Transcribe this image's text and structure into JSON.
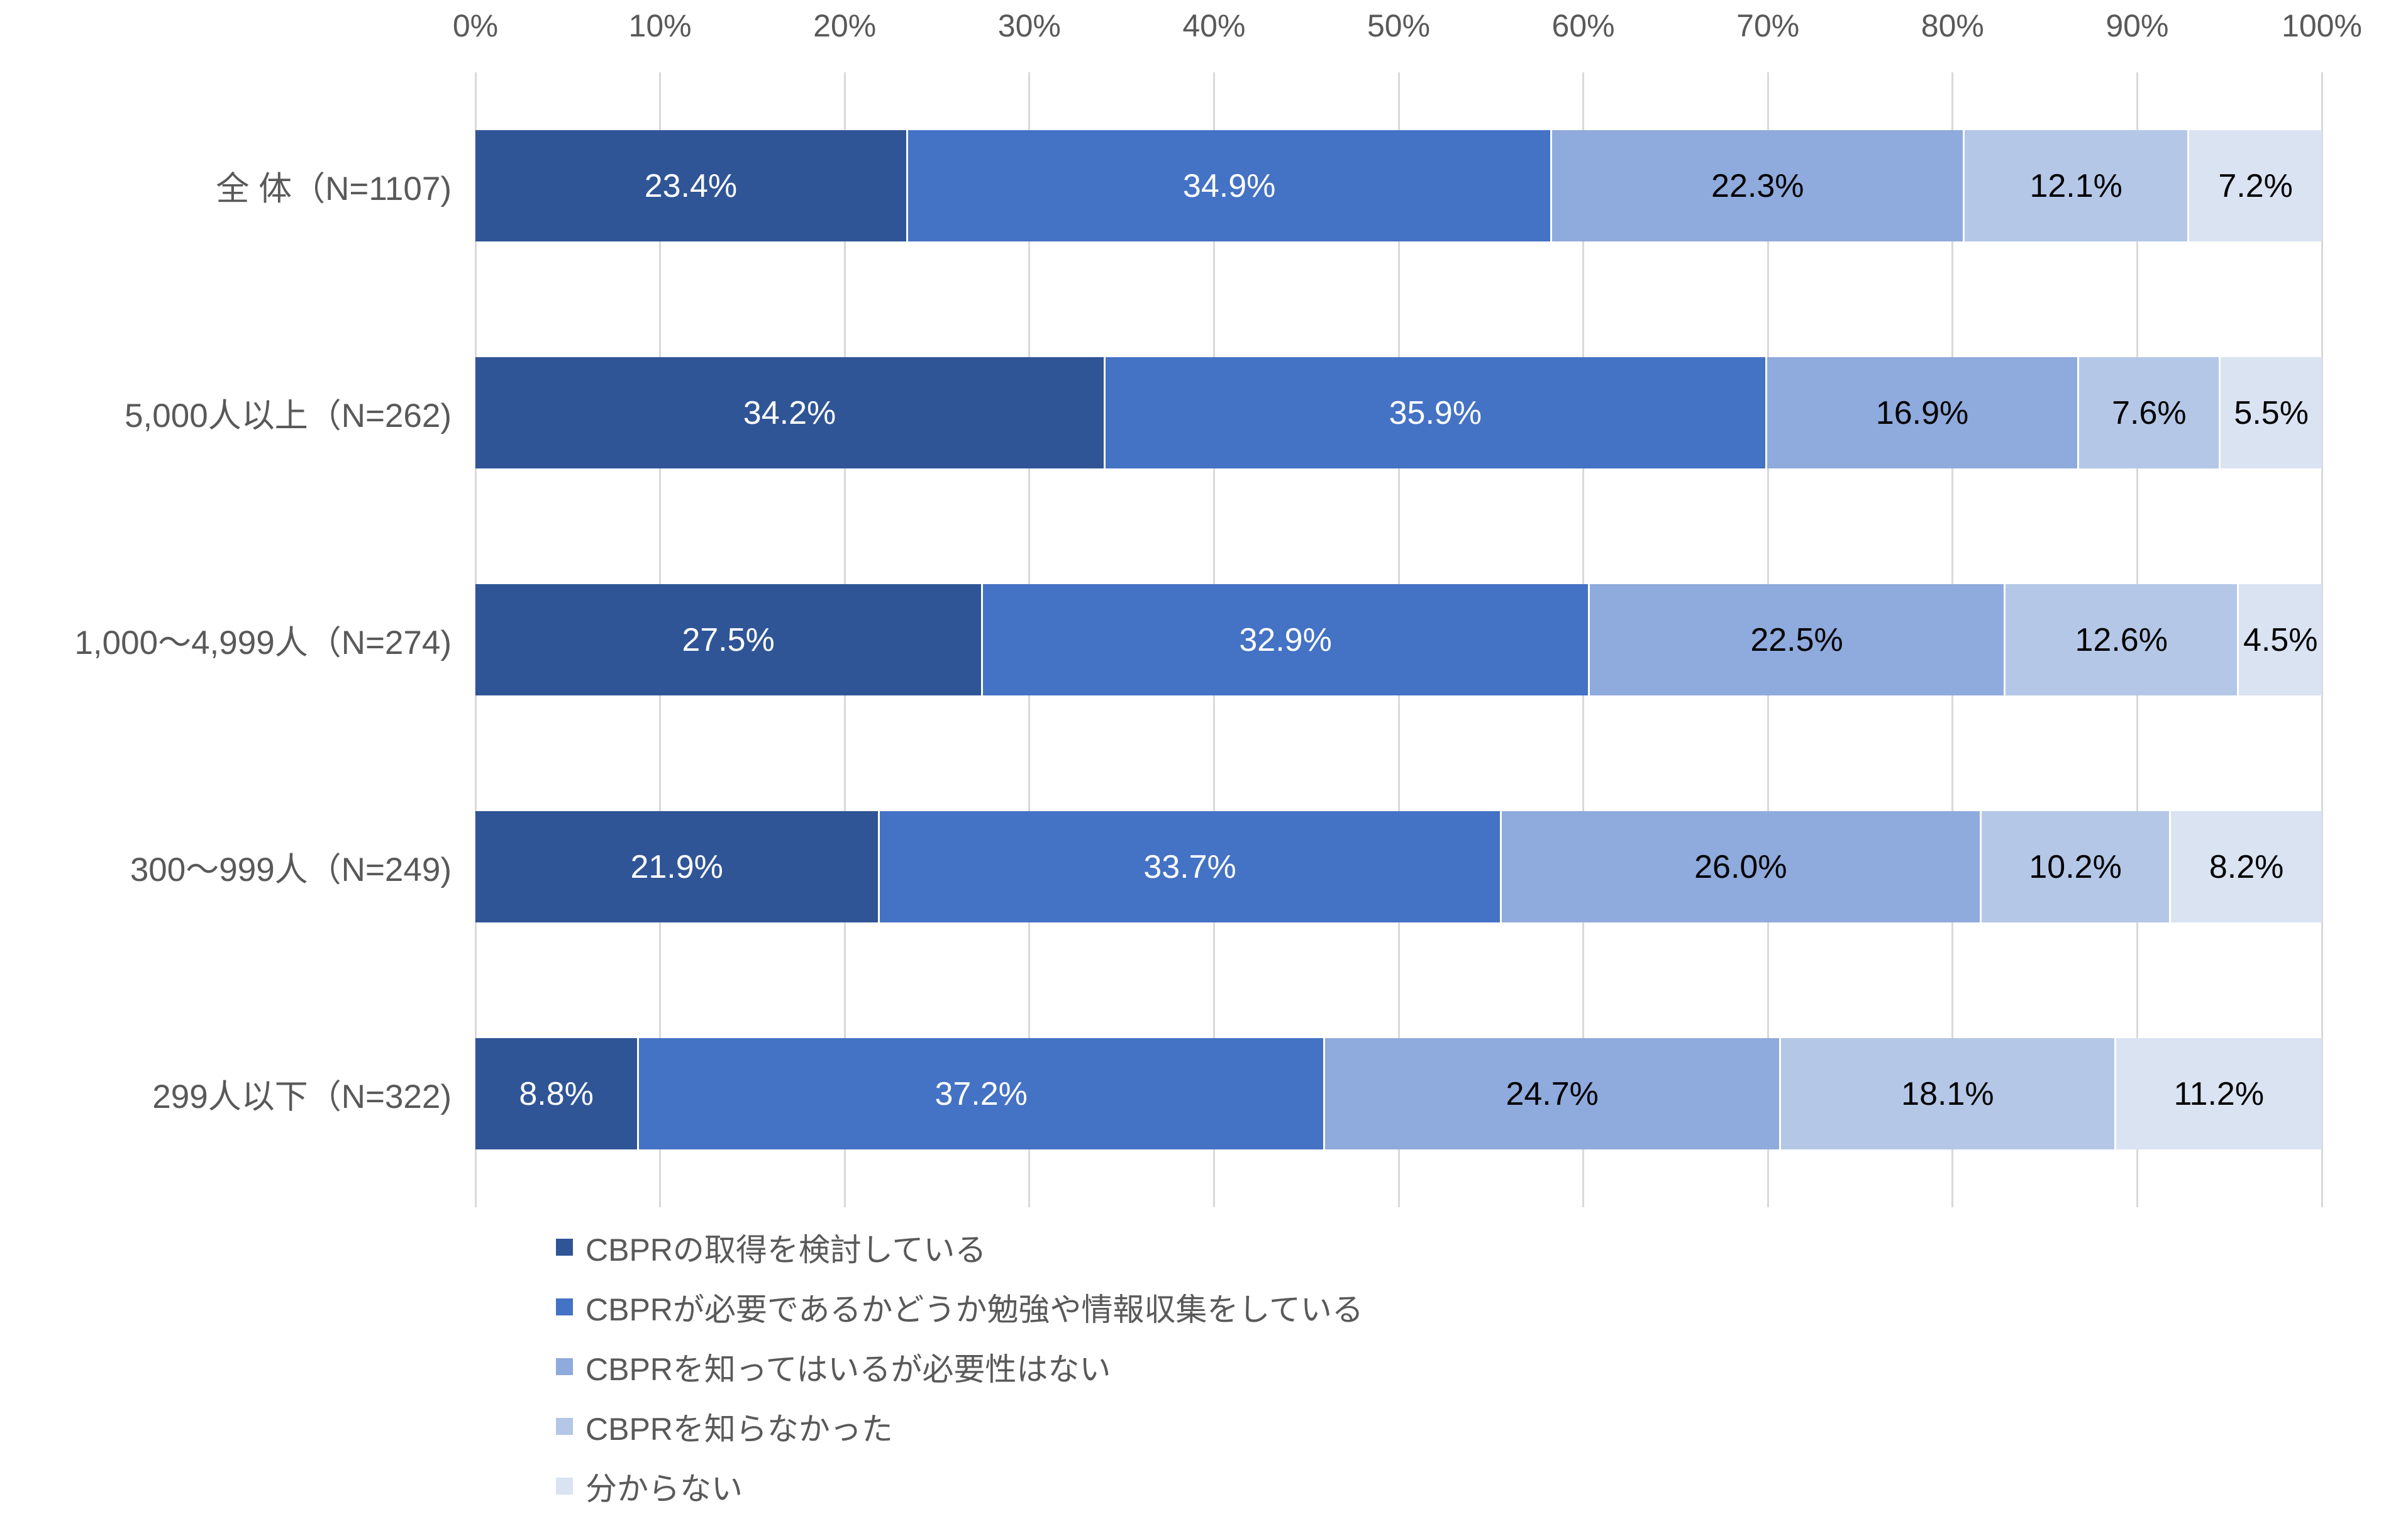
{
  "chart_data": {
    "type": "bar",
    "orientation": "horizontal",
    "stacked": true,
    "title": "",
    "categories": [
      "全 体（N=1107)",
      "5,000人以上（N=262)",
      "1,000～4,999人（N=274)",
      "300～999人（N=249)",
      "299人以下（N=322)"
    ],
    "series": [
      {
        "name": "CBPRの取得を検討している",
        "color": "#2F5597",
        "label_color": "#FFFFFF",
        "values": [
          23.4,
          34.2,
          27.5,
          21.9,
          8.8
        ]
      },
      {
        "name": "CBPRが必要であるかどうか勉強や情報収集をしている",
        "color": "#4472C4",
        "label_color": "#FFFFFF",
        "values": [
          34.9,
          35.9,
          32.9,
          33.7,
          37.2
        ]
      },
      {
        "name": "CBPRを知ってはいるが必要性はない",
        "color": "#8FAADC",
        "label_color": "#000000",
        "values": [
          22.3,
          16.9,
          22.5,
          26.0,
          24.7
        ]
      },
      {
        "name": "CBPRを知らなかった",
        "color": "#B4C7E7",
        "label_color": "#000000",
        "values": [
          12.1,
          7.6,
          12.6,
          10.2,
          18.1
        ]
      },
      {
        "name": "分からない",
        "color": "#DAE3F2",
        "label_color": "#000000",
        "values": [
          7.2,
          5.5,
          4.5,
          8.2,
          11.2
        ]
      }
    ],
    "x_axis": {
      "ticks": [
        "0%",
        "10%",
        "20%",
        "30%",
        "40%",
        "50%",
        "60%",
        "70%",
        "80%",
        "90%",
        "100%"
      ],
      "min": 0,
      "max": 100,
      "position": "top"
    },
    "value_suffix": "%",
    "value_decimals": 1,
    "legend_position": "bottom-left",
    "grid": true,
    "colors": {
      "gridline": "#D9D9D9",
      "axis_text": "#595959",
      "category_text": "#595959",
      "legend_text": "#595959",
      "background": "#FFFFFF"
    }
  }
}
